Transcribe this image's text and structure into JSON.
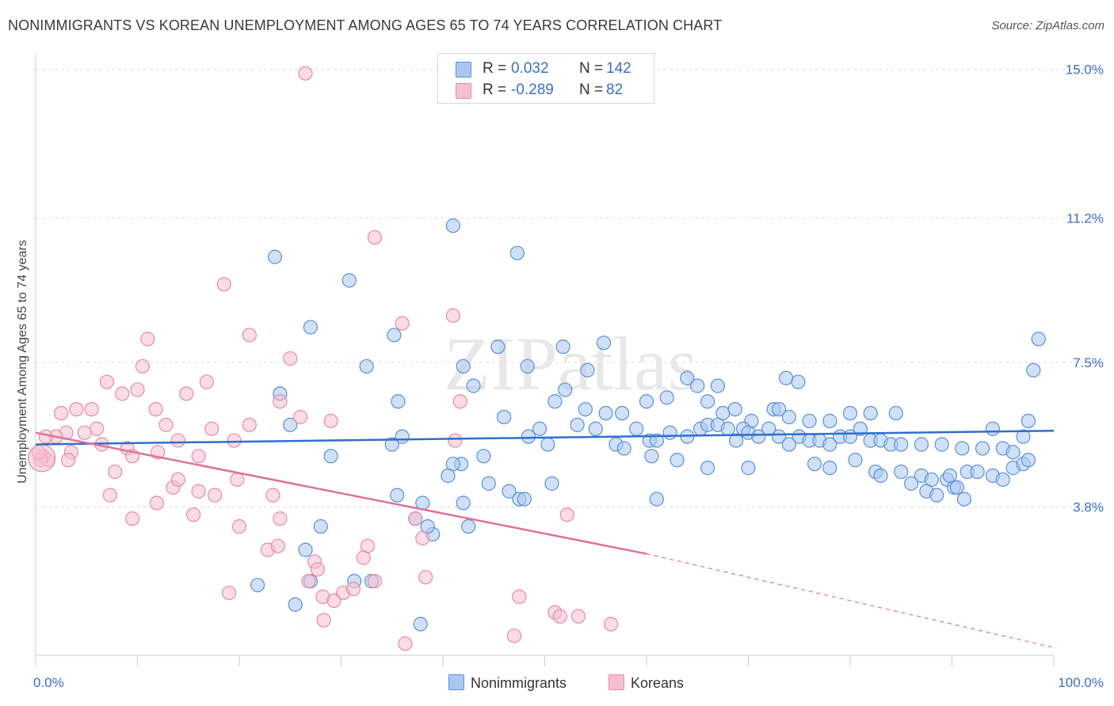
{
  "title": "NONIMMIGRANTS VS KOREAN UNEMPLOYMENT AMONG AGES 65 TO 74 YEARS CORRELATION CHART",
  "source": "Source: ZipAtlas.com",
  "watermark": "ZIPatlas",
  "legend": {
    "rows": [
      {
        "r_label": "R =",
        "r_value": "0.032",
        "n_label": "N =",
        "n_value": "142"
      },
      {
        "r_label": "R =",
        "r_value": "-0.289",
        "n_label": "N =",
        "n_value": "82"
      }
    ]
  },
  "bottom_legend": {
    "series1": "Nonimmigrants",
    "series2": "Koreans"
  },
  "colors": {
    "blue_fill": "#a9c8f0",
    "blue_stroke": "#5b8fd6",
    "blue_line": "#2f6fcc",
    "pink_fill": "#f6bfd0",
    "pink_stroke": "#e58aa8",
    "pink_line": "#e0709a",
    "tick_text": "#3b6fc4",
    "grid": "#dddddd"
  },
  "chart_data": {
    "type": "scatter",
    "xlabel": "",
    "ylabel": "Unemployment Among Ages 65 to 74 years",
    "x_tick_labels": [
      "0.0%",
      "100.0%"
    ],
    "y_tick_labels": [
      "3.8%",
      "7.5%",
      "11.2%",
      "15.0%"
    ],
    "y_ticks": [
      3.8,
      7.5,
      11.2,
      15.0
    ],
    "xlim": [
      0,
      100
    ],
    "ylim": [
      0,
      15.4
    ],
    "grid": true,
    "legend_position": "top-center",
    "series": [
      {
        "name": "Nonimmigrants",
        "r": 0.032,
        "n": 142,
        "trend": {
          "x": [
            0,
            100
          ],
          "y": [
            5.4,
            5.75
          ],
          "dashed_from": null
        },
        "points": [
          [
            23.5,
            10.2
          ],
          [
            30.8,
            9.6
          ],
          [
            41.0,
            11.0
          ],
          [
            47.3,
            10.3
          ],
          [
            27.0,
            8.4
          ],
          [
            35.2,
            8.2
          ],
          [
            45.4,
            7.9
          ],
          [
            51.8,
            7.9
          ],
          [
            55.8,
            8.0
          ],
          [
            32.5,
            7.4
          ],
          [
            42.0,
            7.4
          ],
          [
            48.3,
            7.4
          ],
          [
            54.2,
            7.3
          ],
          [
            73.7,
            7.1
          ],
          [
            74.9,
            7.0
          ],
          [
            98.5,
            8.1
          ],
          [
            98.0,
            7.3
          ],
          [
            24.0,
            6.7
          ],
          [
            35.6,
            6.5
          ],
          [
            43.0,
            6.9
          ],
          [
            46.0,
            6.1
          ],
          [
            51.0,
            6.5
          ],
          [
            52.0,
            6.8
          ],
          [
            54.0,
            6.3
          ],
          [
            56.0,
            6.2
          ],
          [
            57.6,
            6.2
          ],
          [
            60.0,
            6.5
          ],
          [
            62.0,
            6.6
          ],
          [
            64.0,
            7.1
          ],
          [
            65.0,
            6.9
          ],
          [
            66.0,
            6.5
          ],
          [
            67.0,
            6.9
          ],
          [
            67.5,
            6.2
          ],
          [
            68.7,
            6.3
          ],
          [
            70.3,
            6.0
          ],
          [
            72.5,
            6.3
          ],
          [
            73.0,
            6.3
          ],
          [
            74.0,
            6.1
          ],
          [
            76.0,
            6.0
          ],
          [
            78.0,
            6.0
          ],
          [
            80.0,
            6.2
          ],
          [
            81.0,
            5.8
          ],
          [
            82.0,
            6.2
          ],
          [
            84.5,
            6.2
          ],
          [
            94.0,
            5.8
          ],
          [
            97.5,
            6.0
          ],
          [
            25.0,
            5.9
          ],
          [
            29.0,
            5.1
          ],
          [
            35.0,
            5.4
          ],
          [
            36.0,
            5.6
          ],
          [
            41.8,
            4.9
          ],
          [
            44.0,
            5.1
          ],
          [
            48.4,
            5.6
          ],
          [
            49.5,
            5.8
          ],
          [
            50.3,
            5.4
          ],
          [
            53.2,
            5.9
          ],
          [
            55.0,
            5.8
          ],
          [
            57.0,
            5.4
          ],
          [
            57.8,
            5.3
          ],
          [
            59.0,
            5.8
          ],
          [
            60.3,
            5.5
          ],
          [
            61.0,
            5.5
          ],
          [
            62.3,
            5.7
          ],
          [
            64.0,
            5.6
          ],
          [
            65.3,
            5.8
          ],
          [
            66.0,
            5.9
          ],
          [
            67.0,
            5.9
          ],
          [
            68.0,
            5.8
          ],
          [
            68.8,
            5.5
          ],
          [
            69.5,
            5.8
          ],
          [
            70.0,
            5.7
          ],
          [
            71.0,
            5.6
          ],
          [
            72.0,
            5.8
          ],
          [
            73.0,
            5.6
          ],
          [
            74.0,
            5.4
          ],
          [
            75.0,
            5.6
          ],
          [
            76.0,
            5.5
          ],
          [
            77.0,
            5.5
          ],
          [
            78.0,
            5.4
          ],
          [
            79.0,
            5.6
          ],
          [
            80.0,
            5.6
          ],
          [
            82.0,
            5.5
          ],
          [
            83.0,
            5.5
          ],
          [
            84.0,
            5.4
          ],
          [
            85.0,
            5.4
          ],
          [
            87.0,
            5.4
          ],
          [
            89.0,
            5.4
          ],
          [
            91.0,
            5.3
          ],
          [
            93.0,
            5.3
          ],
          [
            95.0,
            5.3
          ],
          [
            96.0,
            5.2
          ],
          [
            97.0,
            5.6
          ],
          [
            60.5,
            5.1
          ],
          [
            63.0,
            5.0
          ],
          [
            66.0,
            4.8
          ],
          [
            70.0,
            4.8
          ],
          [
            76.5,
            4.9
          ],
          [
            78.0,
            4.8
          ],
          [
            80.5,
            5.0
          ],
          [
            82.5,
            4.7
          ],
          [
            85.0,
            4.7
          ],
          [
            87.0,
            4.6
          ],
          [
            88.0,
            4.5
          ],
          [
            89.5,
            4.5
          ],
          [
            90.2,
            4.3
          ],
          [
            91.5,
            4.7
          ],
          [
            92.5,
            4.7
          ],
          [
            94.0,
            4.6
          ],
          [
            95.0,
            4.5
          ],
          [
            96.0,
            4.8
          ],
          [
            97.0,
            4.9
          ],
          [
            97.5,
            5.0
          ],
          [
            87.5,
            4.2
          ],
          [
            88.5,
            4.1
          ],
          [
            90.5,
            4.3
          ],
          [
            91.2,
            4.0
          ],
          [
            86.0,
            4.4
          ],
          [
            89.8,
            4.6
          ],
          [
            83.0,
            4.6
          ],
          [
            41.0,
            4.9
          ],
          [
            44.5,
            4.4
          ],
          [
            40.5,
            4.6
          ],
          [
            35.5,
            4.1
          ],
          [
            38.0,
            3.9
          ],
          [
            42.0,
            3.9
          ],
          [
            46.5,
            4.2
          ],
          [
            47.5,
            4.0
          ],
          [
            48.0,
            4.0
          ],
          [
            50.7,
            4.4
          ],
          [
            61.0,
            4.0
          ],
          [
            37.3,
            3.5
          ],
          [
            39.0,
            3.1
          ],
          [
            38.5,
            3.3
          ],
          [
            26.5,
            2.7
          ],
          [
            28.0,
            3.3
          ],
          [
            27.0,
            1.9
          ],
          [
            21.8,
            1.8
          ],
          [
            25.5,
            1.3
          ],
          [
            31.3,
            1.9
          ],
          [
            33.0,
            1.9
          ],
          [
            37.8,
            0.8
          ],
          [
            42.5,
            3.3
          ]
        ]
      },
      {
        "name": "Koreans",
        "r": -0.289,
        "n": 82,
        "trend": {
          "x": [
            0,
            60,
            100
          ],
          "y": [
            5.7,
            2.6,
            0.2
          ],
          "dashed_from": 60
        },
        "points": [
          [
            26.5,
            14.9
          ],
          [
            33.3,
            10.7
          ],
          [
            18.5,
            9.5
          ],
          [
            36.0,
            8.5
          ],
          [
            41.0,
            8.7
          ],
          [
            21.0,
            8.2
          ],
          [
            25.0,
            7.6
          ],
          [
            11.0,
            8.1
          ],
          [
            10.5,
            7.4
          ],
          [
            7.0,
            7.0
          ],
          [
            10.0,
            6.8
          ],
          [
            8.5,
            6.7
          ],
          [
            14.8,
            6.7
          ],
          [
            16.8,
            7.0
          ],
          [
            24.0,
            6.5
          ],
          [
            26.0,
            6.1
          ],
          [
            29.0,
            6.0
          ],
          [
            41.7,
            6.5
          ],
          [
            11.8,
            6.3
          ],
          [
            2.5,
            6.2
          ],
          [
            4.0,
            6.3
          ],
          [
            5.5,
            6.3
          ],
          [
            12.8,
            5.9
          ],
          [
            17.3,
            5.8
          ],
          [
            21.0,
            5.9
          ],
          [
            6.0,
            5.8
          ],
          [
            3.0,
            5.7
          ],
          [
            4.8,
            5.7
          ],
          [
            2.0,
            5.6
          ],
          [
            1.0,
            5.6
          ],
          [
            9.0,
            5.3
          ],
          [
            12.0,
            5.2
          ],
          [
            14.0,
            5.5
          ],
          [
            16.0,
            5.1
          ],
          [
            19.5,
            5.5
          ],
          [
            6.5,
            5.4
          ],
          [
            3.5,
            5.2
          ],
          [
            0.7,
            5.1
          ],
          [
            1.2,
            5.0
          ],
          [
            0.5,
            5.0
          ],
          [
            3.2,
            5.0
          ],
          [
            0.3,
            5.2
          ],
          [
            9.5,
            5.1
          ],
          [
            7.8,
            4.7
          ],
          [
            19.8,
            4.5
          ],
          [
            13.5,
            4.3
          ],
          [
            14.0,
            4.5
          ],
          [
            16.0,
            4.2
          ],
          [
            17.6,
            4.1
          ],
          [
            7.3,
            4.1
          ],
          [
            11.9,
            3.9
          ],
          [
            23.3,
            4.1
          ],
          [
            41.2,
            5.5
          ],
          [
            9.5,
            3.5
          ],
          [
            15.5,
            3.6
          ],
          [
            20.0,
            3.3
          ],
          [
            24.0,
            3.5
          ],
          [
            37.3,
            3.5
          ],
          [
            52.2,
            3.6
          ],
          [
            38.0,
            3.0
          ],
          [
            22.8,
            2.7
          ],
          [
            23.8,
            2.8
          ],
          [
            27.4,
            2.4
          ],
          [
            32.6,
            2.8
          ],
          [
            32.2,
            2.5
          ],
          [
            27.7,
            2.2
          ],
          [
            26.8,
            1.9
          ],
          [
            33.3,
            1.9
          ],
          [
            38.3,
            2.0
          ],
          [
            19.0,
            1.6
          ],
          [
            28.2,
            1.5
          ],
          [
            30.2,
            1.6
          ],
          [
            31.2,
            1.7
          ],
          [
            47.5,
            1.5
          ],
          [
            51.0,
            1.1
          ],
          [
            51.5,
            1.0
          ],
          [
            53.3,
            1.0
          ],
          [
            56.5,
            0.8
          ],
          [
            28.3,
            0.9
          ],
          [
            36.3,
            0.3
          ],
          [
            47.0,
            0.5
          ],
          [
            29.3,
            1.4
          ]
        ]
      }
    ]
  }
}
